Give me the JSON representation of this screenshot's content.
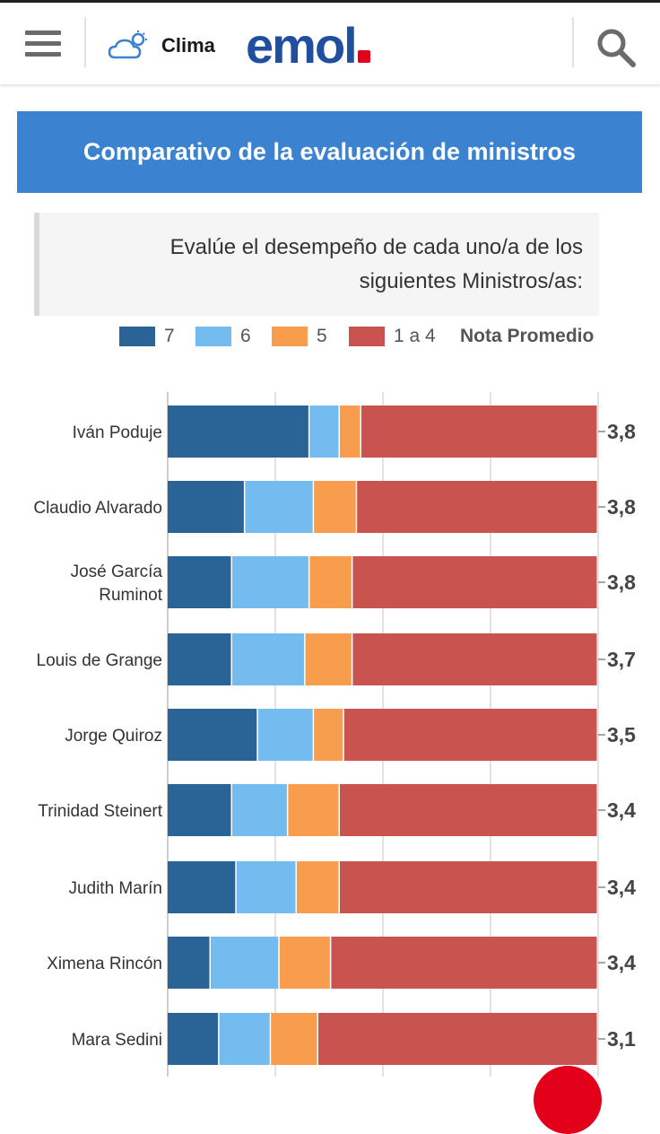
{
  "header": {
    "clima_label": "Clima",
    "logo_text": "emol",
    "icons": [
      "menu-icon",
      "cloud-icon",
      "search-icon"
    ]
  },
  "banner": {
    "title": "Comparativo de la evaluación de ministros"
  },
  "question": {
    "text": "Evalúe el desempeño de cada uno/a de los siguientes Ministros/as:"
  },
  "legend": {
    "items": [
      {
        "label": "7",
        "color": "#2a6496"
      },
      {
        "label": "6",
        "color": "#74bbf0"
      },
      {
        "label": "5",
        "color": "#f89d4e"
      },
      {
        "label": "1 a 4",
        "color": "#c9534f"
      }
    ],
    "average_label": "Nota Promedio"
  },
  "colors": {
    "accent_blue": "#3b82d0",
    "logo_blue": "#1f4f9e",
    "logo_red": "#e2001a"
  },
  "chart_data": {
    "type": "bar",
    "orientation": "horizontal",
    "stacked": true,
    "xlim": [
      0,
      100
    ],
    "categories": [
      "Iván Poduje",
      "Claudio Alvarado",
      "José García Ruminot",
      "Louis de Grange",
      "Jorge Quiroz",
      "Trinidad Steinert",
      "Judith Marín",
      "Ximena Rincón",
      "Mara Sedini"
    ],
    "label_lines": [
      [
        "Iván Poduje"
      ],
      [
        "Claudio Alvarado"
      ],
      [
        "José García",
        "Ruminot"
      ],
      [
        "Louis de Grange"
      ],
      [
        "Jorge Quiroz"
      ],
      [
        "Trinidad Steinert"
      ],
      [
        "Judith Marín"
      ],
      [
        "Ximena Rincón"
      ],
      [
        "Mara Sedini"
      ]
    ],
    "series": [
      {
        "name": "7",
        "color": "#2a6496",
        "values": [
          33,
          18,
          15,
          15,
          21,
          15,
          16,
          10,
          12
        ]
      },
      {
        "name": "6",
        "color": "#74bbf0",
        "values": [
          7,
          16,
          18,
          17,
          13,
          13,
          14,
          16,
          12
        ]
      },
      {
        "name": "5",
        "color": "#f89d4e",
        "values": [
          5,
          10,
          10,
          11,
          7,
          12,
          10,
          12,
          11
        ]
      },
      {
        "name": "1 a 4",
        "color": "#c9534f",
        "values": [
          55,
          56,
          57,
          57,
          59,
          60,
          60,
          62,
          65
        ]
      }
    ],
    "averages": [
      "3,8",
      "3,8",
      "3,8",
      "3,7",
      "3,5",
      "3,4",
      "3,4",
      "3,4",
      "3,1"
    ],
    "gridlines": [
      25,
      50,
      75,
      100
    ]
  }
}
